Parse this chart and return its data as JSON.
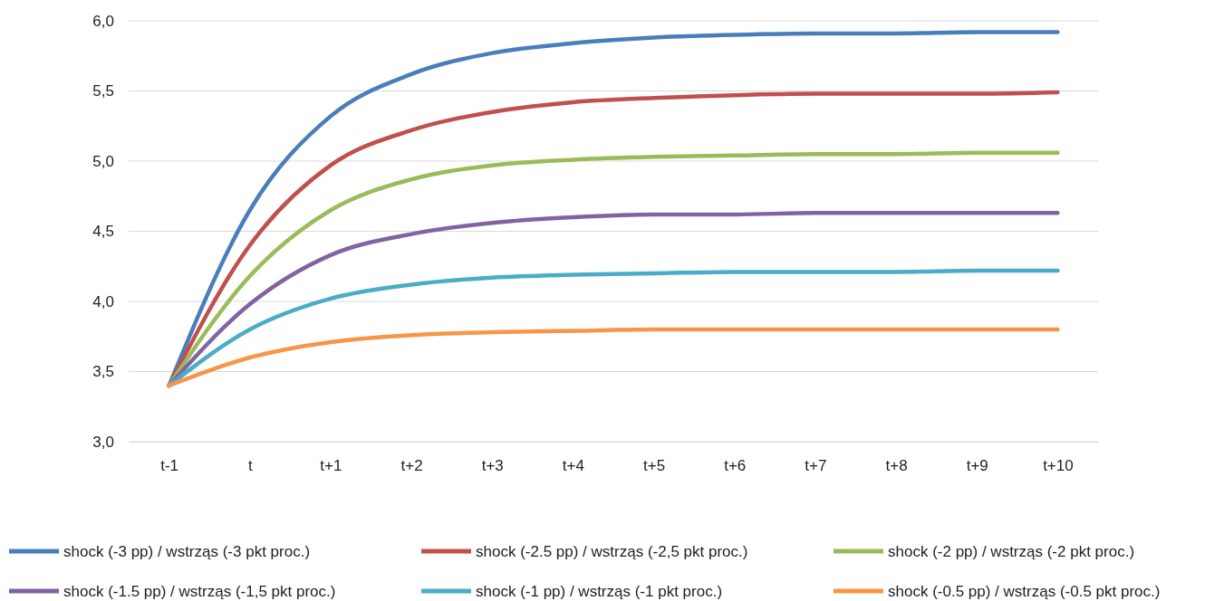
{
  "chart_data": {
    "type": "line",
    "categories": [
      "t-1",
      "t",
      "t+1",
      "t+2",
      "t+3",
      "t+4",
      "t+5",
      "t+6",
      "t+7",
      "t+8",
      "t+9",
      "t+10"
    ],
    "series": [
      {
        "name": "shock (-3 pp) / wstrząs (-3 pkt proc.)",
        "color": "#4a7ebb",
        "values": [
          3.4,
          4.65,
          5.32,
          5.62,
          5.77,
          5.84,
          5.88,
          5.9,
          5.91,
          5.91,
          5.92,
          5.92
        ]
      },
      {
        "name": "shock (-2.5 pp) / wstrząs (-2,5 pkt proc.)",
        "color": "#c0504d",
        "values": [
          3.4,
          4.4,
          4.97,
          5.22,
          5.35,
          5.42,
          5.45,
          5.47,
          5.48,
          5.48,
          5.48,
          5.49
        ]
      },
      {
        "name": "shock (-2 pp) / wstrząs (-2 pkt proc.)",
        "color": "#9bbb59",
        "values": [
          3.4,
          4.18,
          4.65,
          4.87,
          4.97,
          5.01,
          5.03,
          5.04,
          5.05,
          5.05,
          5.06,
          5.06
        ]
      },
      {
        "name": "shock (-1.5 pp) / wstrząs (-1,5 pkt proc.)",
        "color": "#8064a2",
        "values": [
          3.4,
          3.98,
          4.33,
          4.48,
          4.56,
          4.6,
          4.62,
          4.62,
          4.63,
          4.63,
          4.63,
          4.63
        ]
      },
      {
        "name": "shock (-1 pp) / wstrząs (-1 pkt proc.)",
        "color": "#4bacc6",
        "values": [
          3.4,
          3.8,
          4.02,
          4.12,
          4.17,
          4.19,
          4.2,
          4.21,
          4.21,
          4.21,
          4.22,
          4.22
        ]
      },
      {
        "name": "shock (-0.5 pp) / wstrząs (-0.5 pkt proc.)",
        "color": "#f79646",
        "values": [
          3.4,
          3.6,
          3.71,
          3.76,
          3.78,
          3.79,
          3.8,
          3.8,
          3.8,
          3.8,
          3.8,
          3.8
        ]
      }
    ],
    "ylim": [
      3.0,
      6.0
    ],
    "yticks": [
      {
        "value": 3.0,
        "label": "3,0"
      },
      {
        "value": 3.5,
        "label": "3,5"
      },
      {
        "value": 4.0,
        "label": "4,0"
      },
      {
        "value": 4.5,
        "label": "4,5"
      },
      {
        "value": 5.0,
        "label": "5,0"
      },
      {
        "value": 5.5,
        "label": "5,5"
      },
      {
        "value": 6.0,
        "label": "6,0"
      }
    ],
    "grid": "y",
    "legend": "bottom",
    "marker": "none",
    "line_style": "solid"
  }
}
